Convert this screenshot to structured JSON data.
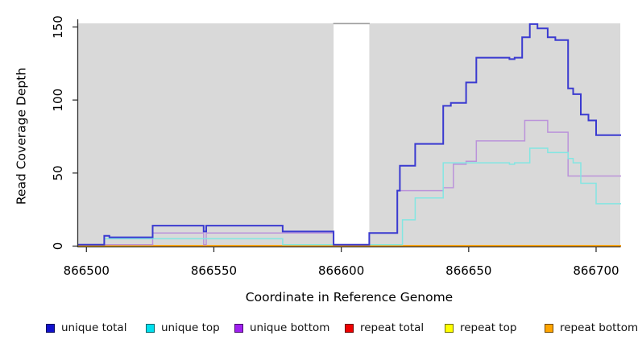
{
  "chart_data": {
    "type": "line",
    "subtype": "step-coverage-plot",
    "title": "",
    "xlabel": "Coordinate in Reference Genome",
    "ylabel": "Read Coverage Depth",
    "xlim": [
      866496,
      866710
    ],
    "ylim": [
      0,
      152.5
    ],
    "x_ticks": [
      866500,
      866550,
      866600,
      866650,
      866700
    ],
    "y_ticks": [
      0,
      50,
      100,
      150
    ],
    "grid": "off",
    "panel_bg": "#d9d9d9",
    "axis_color": "#333333",
    "gap_band": {
      "x_start": 866597,
      "x_end": 866611,
      "fill": "#ffffff",
      "cap_color": "#9c9c9c"
    },
    "series": [
      {
        "name": "repeat top",
        "color": "#ffee00",
        "width": 1.4,
        "points": [
          [
            866496,
            0
          ]
        ]
      },
      {
        "name": "repeat total",
        "color": "#ee6688",
        "width": 1.5,
        "points": [
          [
            866496,
            0.9
          ],
          [
            866526,
            0
          ]
        ]
      },
      {
        "name": "repeat bottom",
        "color": "#ffa500",
        "width": 1.8,
        "points": [
          [
            866496,
            0.3
          ]
        ]
      },
      {
        "name": "unique bottom",
        "color": "#bb93da",
        "width": 1.5,
        "points": [
          [
            866496,
            1
          ],
          [
            866526,
            9
          ],
          [
            866546,
            1
          ],
          [
            866547,
            9
          ],
          [
            866597,
            1
          ],
          [
            866611,
            9
          ],
          [
            866622,
            38
          ],
          [
            866640,
            40
          ],
          [
            866644,
            56
          ],
          [
            866649,
            58
          ],
          [
            866653,
            72
          ],
          [
            866672,
            86
          ],
          [
            866681,
            78
          ],
          [
            866689,
            48
          ]
        ]
      },
      {
        "name": "unique top",
        "color": "#83e6e2",
        "width": 1.5,
        "points": [
          [
            866496,
            1
          ],
          [
            866507,
            5
          ],
          [
            866577,
            1
          ],
          [
            866624,
            18
          ],
          [
            866629,
            33
          ],
          [
            866640,
            57
          ],
          [
            866666,
            56
          ],
          [
            866668,
            57
          ],
          [
            866674,
            67
          ],
          [
            866681,
            64
          ],
          [
            866689,
            60
          ],
          [
            866691,
            57
          ],
          [
            866694,
            43
          ],
          [
            866700,
            29
          ]
        ]
      },
      {
        "name": "unique total",
        "color": "#3a3ad0",
        "width": 2,
        "points": [
          [
            866496,
            1
          ],
          [
            866507,
            7
          ],
          [
            866509,
            6
          ],
          [
            866526,
            14
          ],
          [
            866546,
            10
          ],
          [
            866547,
            14
          ],
          [
            866577,
            10
          ],
          [
            866597,
            1
          ],
          [
            866611,
            9
          ],
          [
            866622,
            38
          ],
          [
            866623,
            55
          ],
          [
            866629,
            70
          ],
          [
            866640,
            96
          ],
          [
            866643,
            98
          ],
          [
            866649,
            112
          ],
          [
            866653,
            129
          ],
          [
            866666,
            128
          ],
          [
            866668,
            129
          ],
          [
            866671,
            143
          ],
          [
            866674,
            152
          ],
          [
            866677,
            149
          ],
          [
            866681,
            143
          ],
          [
            866684,
            141
          ],
          [
            866689,
            108
          ],
          [
            866691,
            104
          ],
          [
            866694,
            90
          ],
          [
            866697,
            86
          ],
          [
            866700,
            76
          ]
        ]
      }
    ],
    "legend": [
      {
        "label": "unique total",
        "swatch": "#1111cc"
      },
      {
        "label": "unique top",
        "swatch": "#00e0ee"
      },
      {
        "label": "unique bottom",
        "swatch": "#a020f0"
      },
      {
        "label": "repeat total",
        "swatch": "#ee0000"
      },
      {
        "label": "repeat top",
        "swatch": "#ffff00"
      },
      {
        "label": "repeat bottom",
        "swatch": "#ffa500"
      }
    ],
    "legend_position": "bottom"
  }
}
